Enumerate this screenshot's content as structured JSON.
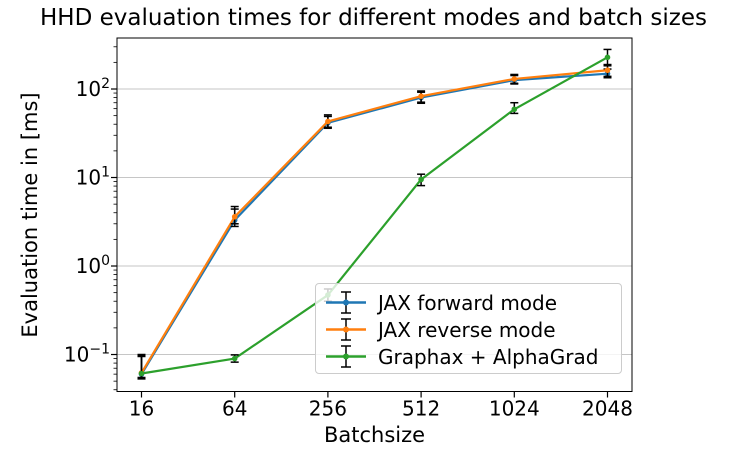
{
  "chart_data": {
    "type": "line",
    "title": "HHD evaluation times for different modes and batch sizes",
    "xlabel": "Batchsize",
    "ylabel": "Evaluation time in [ms]",
    "x_scale": "categorical",
    "y_scale": "log",
    "categories": [
      "16",
      "64",
      "256",
      "512",
      "1024",
      "2048"
    ],
    "y_tick_exponents": [
      -1,
      0,
      1,
      2
    ],
    "ylim": [
      0.0382,
      377
    ],
    "grid": "major-y-horizontal",
    "legend_position": "lower-right-inside",
    "series": [
      {
        "name": "JAX forward mode",
        "color": "#1f77b4",
        "values": [
          0.06,
          3.3,
          41.5,
          80,
          126,
          149
        ],
        "err_low": [
          0.053,
          2.8,
          36,
          69,
          114,
          134
        ],
        "err_high": [
          0.095,
          4.4,
          49,
          92,
          142,
          168
        ]
      },
      {
        "name": "JAX reverse mode",
        "color": "#ff7f0e",
        "values": [
          0.062,
          3.6,
          43,
          83,
          130,
          163
        ],
        "err_low": [
          0.055,
          3.0,
          37,
          71,
          116,
          139
        ],
        "err_high": [
          0.1,
          4.7,
          51,
          95,
          146,
          183
        ]
      },
      {
        "name": "Graphax + AlphaGrad",
        "color": "#2ca02c",
        "values": [
          0.061,
          0.09,
          0.47,
          9.5,
          59,
          228
        ],
        "err_low": [
          0.054,
          0.082,
          0.4,
          8.1,
          53,
          189
        ],
        "err_high": [
          0.098,
          0.099,
          0.55,
          10.9,
          70,
          280
        ]
      }
    ],
    "colors": {
      "errorbar": "#000000",
      "grid": "#c6c6c6",
      "spine": "#000000",
      "text": "#000000",
      "legend_border": "#cccccc"
    }
  }
}
